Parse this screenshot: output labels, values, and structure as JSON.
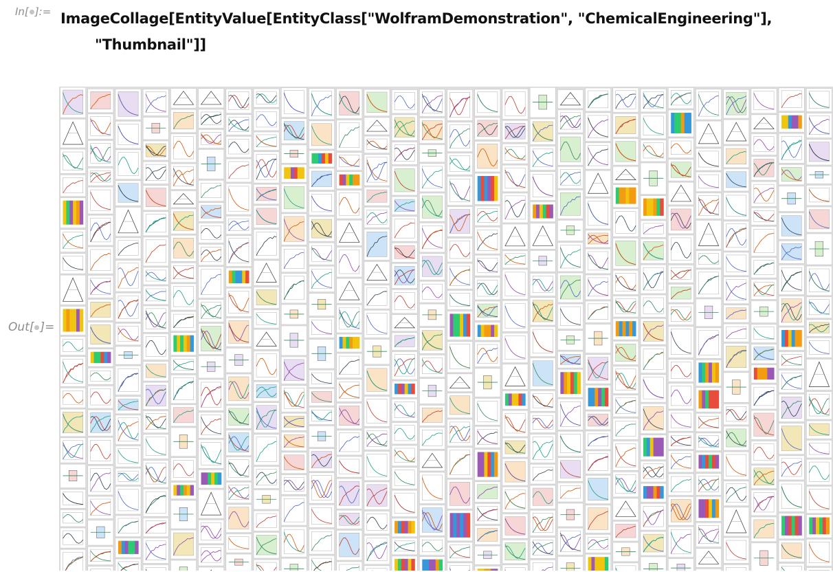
{
  "notebook": {
    "input": {
      "label": "In[●]:=",
      "label_prefix": "In[",
      "label_suffix": "]:=",
      "code_line1": "ImageCollage[EntityValue[EntityClass[\"WolframDemonstration\", \"ChemicalEngineering\"],",
      "code_line2": "\"Thumbnail\"]]"
    },
    "output": {
      "label": "Out[●]=",
      "label_prefix": "Out[",
      "label_suffix": "]=",
      "content": "image-collage-of-demonstration-thumbnails"
    }
  },
  "style": {
    "label_color": "#8c8c8c",
    "code_color": "#111111",
    "collage_background": "#dddddd"
  }
}
